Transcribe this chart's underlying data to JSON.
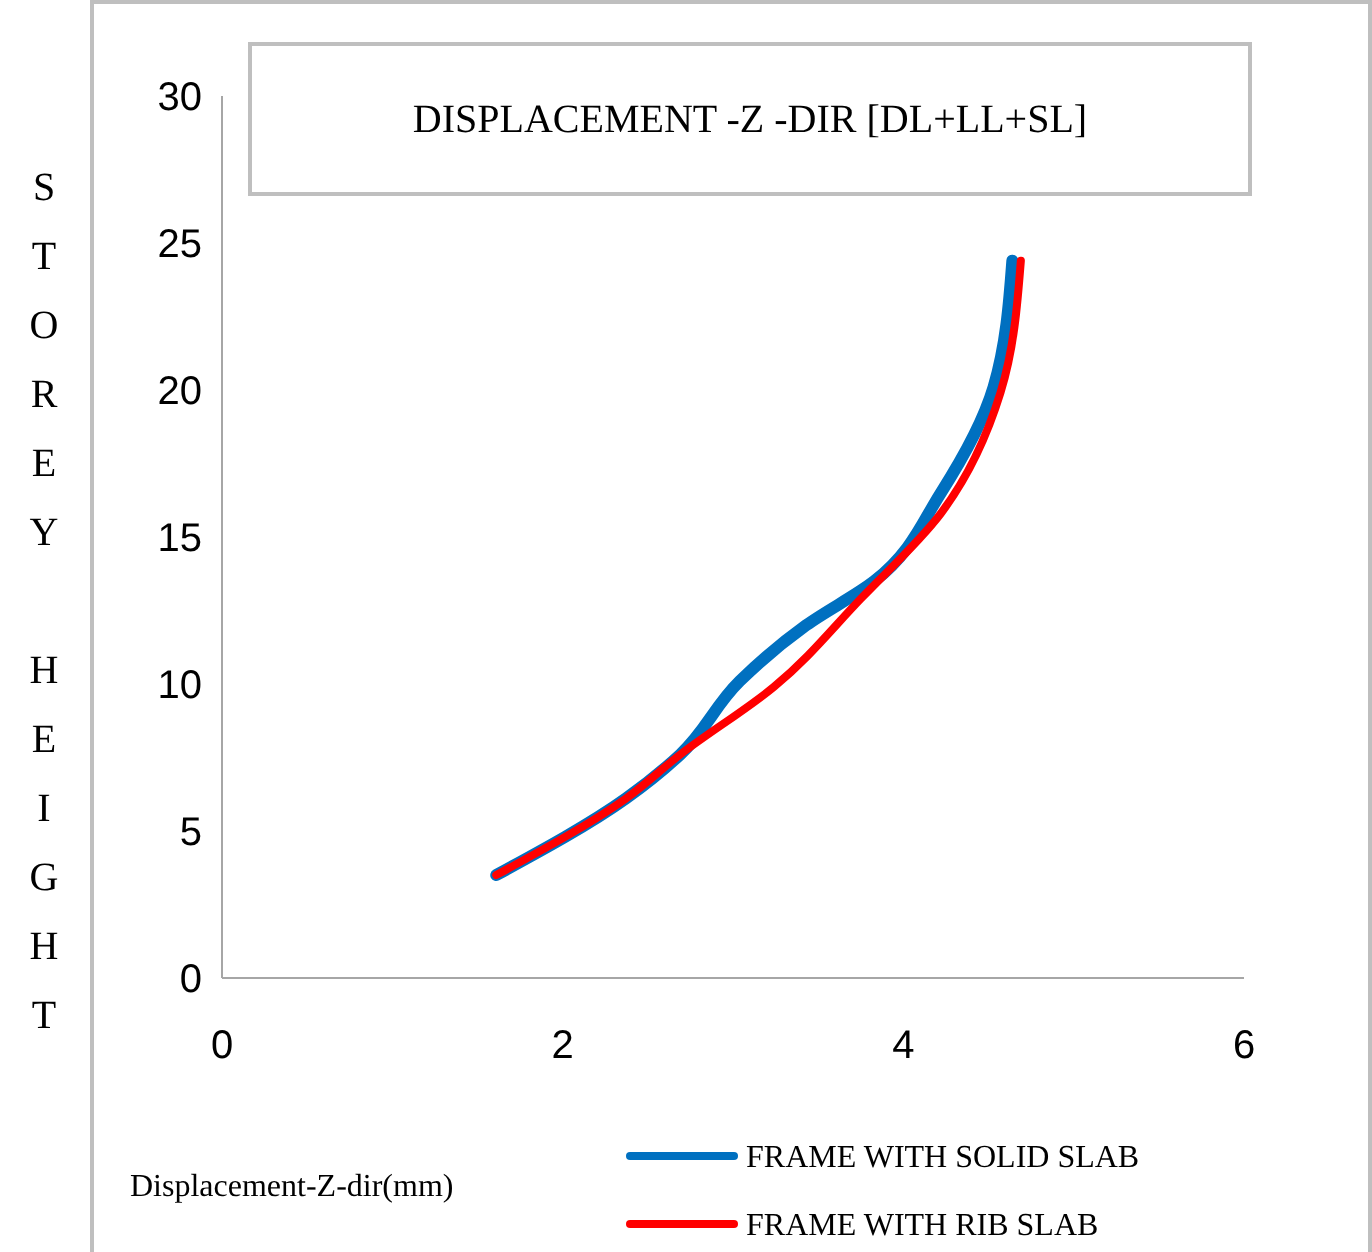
{
  "chart_data": {
    "type": "line",
    "title": "DISPLACEMENT -Z -DIR [DL+LL+SL]",
    "xlabel": "Displacement-Z-dir(mm)",
    "ylabel": "STOREY HEIGHT",
    "xlim": [
      0,
      6
    ],
    "xticks": [
      0,
      2,
      4,
      6
    ],
    "ylim": [
      0,
      30
    ],
    "yticks": [
      0,
      5,
      10,
      15,
      20,
      25,
      30
    ],
    "grid": false,
    "legend": "bottom right",
    "marker": "none",
    "line_style": "solid",
    "series": [
      {
        "name": "FRAME WITH SOLID SLAB",
        "color": "#0070c0",
        "x": [
          1.61,
          2.37,
          2.69,
          3.04,
          3.43,
          3.83,
          4.22,
          4.53,
          4.64
        ],
        "values": [
          3.5,
          6.1,
          7.6,
          10.1,
          12.0,
          13.5,
          16.5,
          20.1,
          24.4
        ]
      },
      {
        "name": "FRAME WITH RIB SLAB",
        "color": "#ff0000",
        "x": [
          1.61,
          2.37,
          2.69,
          3.24,
          3.75,
          4.22,
          4.57,
          4.69
        ],
        "values": [
          3.5,
          6.1,
          7.6,
          9.9,
          12.9,
          15.8,
          19.9,
          24.4
        ]
      }
    ]
  }
}
